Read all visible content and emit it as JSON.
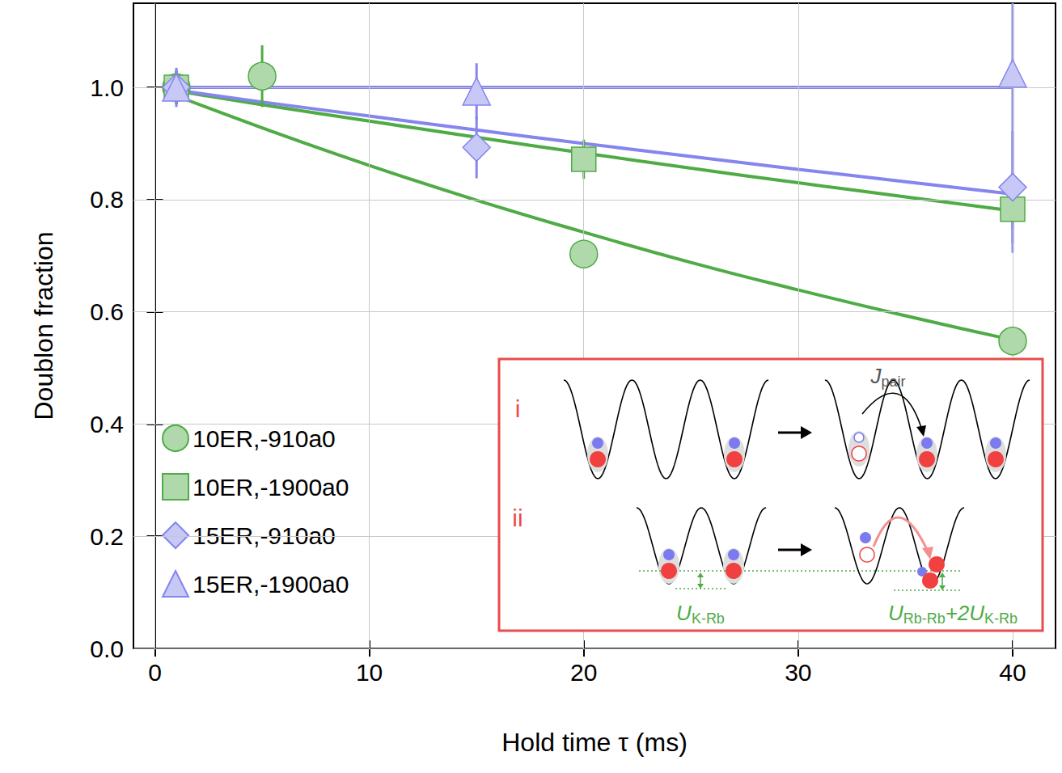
{
  "chart_data": {
    "type": "scatter",
    "x_label": "Hold time τ (ms)",
    "y_label": "Doublon fraction",
    "xlim": [
      -1,
      42
    ],
    "xticks": [
      0,
      10,
      20,
      30,
      40
    ],
    "ylim": [
      0,
      1.15
    ],
    "yticks": [
      {
        "value": 0,
        "label": "0.0"
      },
      0.2,
      0.4,
      0.6,
      0.8,
      {
        "value": 1,
        "label": "1.0"
      }
    ],
    "grid": true,
    "legend": "lower left",
    "fit_x": [
      1,
      5,
      10,
      15,
      20,
      25,
      30,
      35,
      40
    ],
    "series": [
      {
        "name": "10ER,-910a0",
        "color": "#4fab45",
        "marker": "circle",
        "x": [
          1,
          5,
          20,
          40
        ],
        "values": [
          1.0,
          1.02,
          0.703,
          0.548
        ],
        "errors": [
          0.03,
          0.055,
          0.01,
          0.01
        ],
        "fit": [
          0.985,
          0.928,
          0.861,
          0.799,
          0.742,
          0.688,
          0.639,
          0.593,
          0.55
        ]
      },
      {
        "name": "10ER,-1900a0",
        "color": "#4fab45",
        "marker": "square",
        "x": [
          1,
          20,
          40
        ],
        "values": [
          1.0,
          0.872,
          0.783
        ],
        "errors": [
          0.03,
          0.035,
          0.035
        ],
        "fit": [
          0.994,
          0.969,
          0.94,
          0.911,
          0.883,
          0.856,
          0.83,
          0.805,
          0.78
        ]
      },
      {
        "name": "15ER,-910a0",
        "color": "#8585ee",
        "marker": "diamond",
        "x": [
          1,
          15,
          40
        ],
        "values": [
          1.0,
          0.893,
          0.822
        ],
        "errors": [
          0.035,
          0.055,
          0.1
        ],
        "fit": [
          0.995,
          0.974,
          0.949,
          0.924,
          0.9,
          0.877,
          0.854,
          0.832,
          0.81
        ]
      },
      {
        "name": "15ER,-1900a0",
        "color": "#8585ee",
        "marker": "triangle",
        "x": [
          1,
          15,
          40
        ],
        "values": [
          1.0,
          0.993,
          1.025
        ],
        "errors": [
          0.03,
          0.05,
          0.32
        ],
        "fit": [
          1.0,
          1.0,
          1.0,
          1.0,
          1.0,
          1.0,
          1.0,
          1.0,
          1.0
        ]
      }
    ],
    "inset": {
      "rows": [
        "i",
        "ii"
      ],
      "hop_label": [
        [
          "J",
          "pair"
        ]
      ],
      "left_gap_label": [
        [
          "U",
          "K-Rb"
        ]
      ],
      "right_gap_label": [
        [
          "U",
          "Rb-Rb"
        ],
        [
          "+2U",
          "K-Rb"
        ]
      ]
    }
  }
}
